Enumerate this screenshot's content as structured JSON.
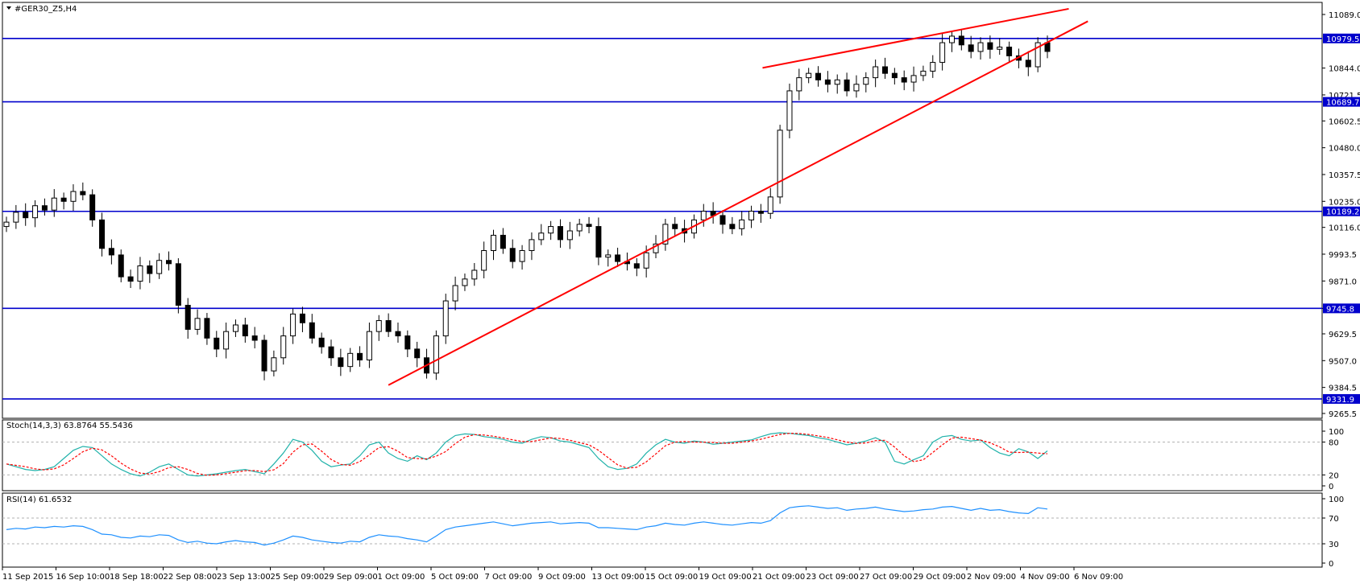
{
  "chart_data": {
    "type": "candlestick",
    "title": "#GER30_Z5,H4",
    "yticks": [
      "11089.0",
      "10844.0",
      "10721.5",
      "10602.5",
      "10480.0",
      "10357.5",
      "10235.0",
      "10116.0",
      "9993.5",
      "9871.0",
      "9745.8",
      "9629.5",
      "9507.0",
      "9384.5",
      "9265.5"
    ],
    "ylim": [
      9265.5,
      11089.0
    ],
    "xticks": [
      "11 Sep 2015",
      "16 Sep 10:00",
      "18 Sep 18:00",
      "22 Sep 08:00",
      "23 Sep 13:00",
      "25 Sep 09:00",
      "29 Sep 09:00",
      "1 Oct 09:00",
      "5 Oct 09:00",
      "7 Oct 09:00",
      "9 Oct 09:00",
      "13 Oct 09:00",
      "15 Oct 09:00",
      "19 Oct 09:00",
      "21 Oct 09:00",
      "23 Oct 09:00",
      "27 Oct 09:00",
      "29 Oct 09:00",
      "2 Nov 09:00",
      "4 Nov 09:00",
      "6 Nov 09:00"
    ],
    "levels": [
      {
        "label": "10979.5",
        "value": 10979.5,
        "color": "#0000cc"
      },
      {
        "label": "10689.7",
        "value": 10689.7,
        "color": "#0000cc"
      },
      {
        "label": "10189.2",
        "value": 10189.2,
        "color": "#0000cc"
      },
      {
        "label": "9745.8",
        "value": 9745.8,
        "color": "#0000cc"
      },
      {
        "label": "9331.9",
        "value": 9331.9,
        "color": "#0000cc"
      }
    ],
    "trendlines": [
      {
        "color": "#ff0000",
        "points": [
          [
            0.2925,
            9395
          ],
          [
            0.8225,
            11058
          ]
        ]
      },
      {
        "color": "#ff0000",
        "points": [
          [
            0.576,
            10845
          ],
          [
            0.808,
            11115
          ]
        ]
      }
    ],
    "candles_close_series": [
      10140,
      10185,
      10160,
      10215,
      10195,
      10250,
      10235,
      10280,
      10265,
      10150,
      10020,
      9990,
      9890,
      9870,
      9940,
      9905,
      9965,
      9950,
      9760,
      9650,
      9700,
      9610,
      9560,
      9640,
      9670,
      9620,
      9600,
      9460,
      9520,
      9620,
      9720,
      9680,
      9610,
      9570,
      9520,
      9480,
      9540,
      9510,
      9640,
      9690,
      9640,
      9620,
      9560,
      9520,
      9450,
      9620,
      9780,
      9850,
      9880,
      9920,
      10010,
      10080,
      10020,
      9960,
      10010,
      10060,
      10090,
      10120,
      10060,
      10100,
      10130,
      10120,
      9980,
      9990,
      9960,
      9950,
      9930,
      10000,
      10040,
      10130,
      10110,
      10090,
      10150,
      10190,
      10170,
      10130,
      10110,
      10150,
      10190,
      10180,
      10255,
      10560,
      10740,
      10800,
      10820,
      10790,
      10770,
      10790,
      10740,
      10770,
      10800,
      10850,
      10820,
      10800,
      10780,
      10810,
      10830,
      10870,
      10960,
      10990,
      10950,
      10920,
      10960,
      10930,
      10940,
      10900,
      10880,
      10850,
      10960,
      10920
    ],
    "stoch_label": "Stoch(14,3,3) 63.8764 55.5436",
    "stoch_scale": [
      "100",
      "80",
      "20",
      "0"
    ],
    "stoch_main": [
      40,
      35,
      30,
      28,
      30,
      35,
      50,
      65,
      72,
      70,
      55,
      40,
      30,
      22,
      18,
      25,
      35,
      40,
      30,
      20,
      18,
      20,
      22,
      25,
      28,
      30,
      26,
      22,
      40,
      60,
      85,
      80,
      65,
      45,
      35,
      38,
      40,
      55,
      75,
      80,
      60,
      50,
      45,
      55,
      48,
      60,
      80,
      92,
      95,
      94,
      90,
      88,
      85,
      80,
      78,
      85,
      90,
      88,
      82,
      80,
      75,
      70,
      50,
      35,
      30,
      32,
      40,
      60,
      75,
      85,
      80,
      78,
      82,
      80,
      76,
      78,
      80,
      82,
      84,
      90,
      95,
      97,
      96,
      94,
      92,
      88,
      85,
      80,
      75,
      78,
      82,
      88,
      80,
      45,
      40,
      48,
      55,
      80,
      90,
      92,
      85,
      82,
      84,
      70,
      60,
      55,
      68,
      62,
      50,
      64
    ],
    "rsi_label": "RSI(14) 61.6532",
    "rsi_scale": [
      "100",
      "70",
      "30",
      "0"
    ],
    "rsi": [
      52,
      54,
      53,
      56,
      55,
      57,
      56,
      58,
      57,
      52,
      45,
      44,
      40,
      39,
      42,
      41,
      44,
      43,
      36,
      32,
      34,
      31,
      30,
      33,
      35,
      33,
      32,
      28,
      31,
      36,
      42,
      40,
      36,
      34,
      32,
      31,
      34,
      33,
      40,
      44,
      42,
      41,
      38,
      36,
      33,
      42,
      52,
      56,
      58,
      60,
      62,
      64,
      61,
      58,
      60,
      62,
      63,
      64,
      61,
      62,
      63,
      62,
      55,
      55,
      54,
      53,
      52,
      56,
      58,
      62,
      60,
      59,
      62,
      64,
      62,
      60,
      59,
      61,
      63,
      62,
      66,
      78,
      86,
      88,
      89,
      87,
      85,
      86,
      82,
      84,
      85,
      87,
      84,
      82,
      80,
      81,
      83,
      84,
      87,
      88,
      85,
      82,
      85,
      82,
      83,
      80,
      78,
      77,
      86,
      84
    ]
  }
}
